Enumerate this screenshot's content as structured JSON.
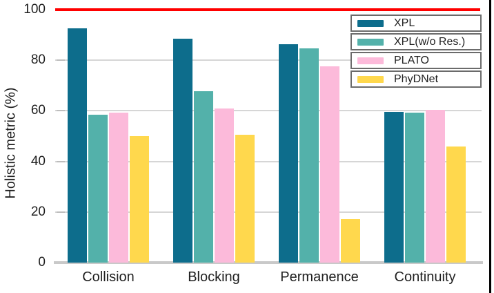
{
  "chart_data": {
    "type": "bar",
    "title": "",
    "xlabel": "",
    "ylabel": "Holistic metric (%)",
    "ylim": [
      0,
      100
    ],
    "yticks": [
      0,
      20,
      40,
      60,
      80,
      100
    ],
    "gridline_ticks": [
      20,
      40,
      60,
      80
    ],
    "grid": "horizontal gridlines on",
    "reference_line": {
      "value": 100,
      "color": "#ff0000"
    },
    "categories": [
      "Collision",
      "Blocking",
      "Permanence",
      "Continuity"
    ],
    "series": [
      {
        "name": "XPL",
        "color": "#0d6d8c",
        "values": [
          92.6,
          88.5,
          86.3,
          59.5
        ]
      },
      {
        "name": "XPL(w/o Res.)",
        "color": "#53b1aa",
        "values": [
          58.6,
          67.7,
          84.7,
          59.2
        ]
      },
      {
        "name": "PLATO",
        "color": "#fcbada",
        "values": [
          59.2,
          60.8,
          77.5,
          60.3
        ]
      },
      {
        "name": "PhyDNet",
        "color": "#ffd84d",
        "values": [
          50.0,
          50.6,
          17.3,
          45.8
        ]
      }
    ],
    "legend": {
      "position": "upper right",
      "entries": [
        "XPL",
        "XPL(w/o Res.)",
        "PLATO",
        "PhyDNet"
      ]
    }
  },
  "colors": {
    "reference_line": "#ff0000",
    "gridline": "#d6d6d6",
    "baseline": "#c9c9c9",
    "tick": "#bdbdbd",
    "text": "#1f1f1f",
    "legend_border": "#6b6b6b",
    "window_edge": "#000000"
  }
}
